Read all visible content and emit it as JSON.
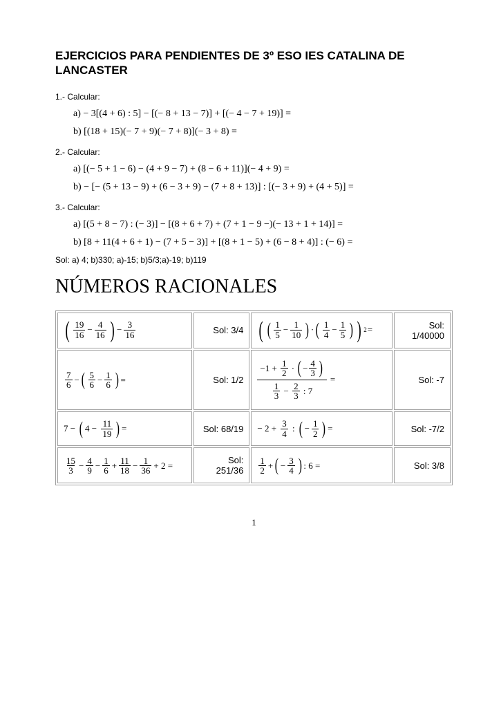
{
  "title": "EJERCICIOS PARA PENDIENTES DE 3º ESO IES CATALINA DE LANCASTER",
  "exercises": {
    "e1": {
      "label": "1.- Calcular:",
      "a": "a) − 3[(4 + 6) : 5] − [(− 8 + 13 − 7)] + [(− 4 − 7 + 19)] =",
      "b": "b) [(18 + 15)(− 7 + 9)(− 7 + 8)](− 3 + 8) ="
    },
    "e2": {
      "label": "2.- Calcular:",
      "a": "a) [(− 5 + 1 − 6) − (4 + 9 − 7) + (8 − 6 + 11)](− 4 + 9) =",
      "b": "b) − [− (5 + 13 − 9) + (6 − 3 + 9) − (7 + 8 + 13)] : [(− 3 + 9) + (4 + 5)] ="
    },
    "e3": {
      "label": "3.- Calcular:",
      "a": "a) [(5 + 8 − 7) : (− 3)] − [(8 + 6 + 7) + (7 + 1 − 9 −)(− 13 + 1 + 14)] =",
      "b": "b) [8 + 11(4 + 6 + 1) − (7 + 5 − 3)] + [(8 + 1 − 5) + (6 − 8 + 4)] : (− 6) ="
    },
    "sol": "Sol: a) 4; b)330; a)-15; b)5/3;a)-19; b)119"
  },
  "section_title": "NÚMEROS RACIONALES",
  "table": {
    "r1": {
      "s1": "Sol: 3/4",
      "s2": "Sol: 1/40000"
    },
    "r2": {
      "s1": "Sol: 1/2",
      "s2": "Sol: -7"
    },
    "r3": {
      "s1": "Sol: 68/19",
      "s2": "Sol: -7/2"
    },
    "r4": {
      "s1": "Sol: 251/36",
      "s2": "Sol: 3/8"
    }
  },
  "frac": {
    "n19": "19",
    "n16": "16",
    "n4": "4",
    "n3": "3",
    "n1": "1",
    "n5": "5",
    "n10": "10",
    "n7": "7",
    "n6": "6",
    "n2": "2",
    "n11": "11",
    "n15": "15",
    "n9": "9",
    "n18": "18",
    "n36": "36"
  },
  "sym": {
    "minus": "−",
    "plus": "+",
    "eq": "=",
    "dot": "·",
    "colon": ":",
    "neg4_3": "4",
    "neg_half_n": "1",
    "neg_half_d": "2"
  },
  "pagenum": "1"
}
